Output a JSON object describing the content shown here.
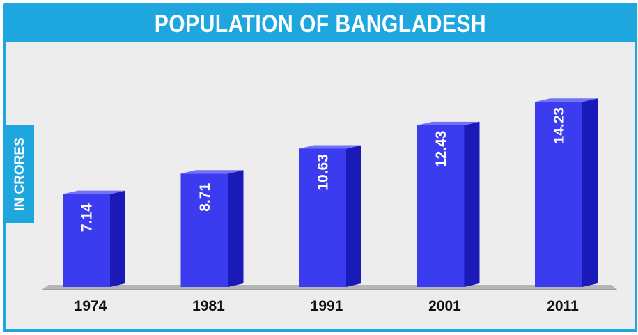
{
  "chart_data": {
    "type": "bar",
    "title": "POPULATION OF BANGLADESH",
    "ylabel": "IN CRORES",
    "xlabel": "",
    "categories": [
      "1974",
      "1981",
      "1991",
      "2001",
      "2011"
    ],
    "values": [
      7.14,
      8.71,
      10.63,
      12.43,
      14.23
    ],
    "value_labels": [
      "7.14",
      "8.71",
      "10.63",
      "12.43",
      "14.23"
    ],
    "ylim": [
      0,
      15.9
    ],
    "grid": false,
    "legend": "none",
    "style": "3d-columns"
  },
  "colors": {
    "accent": "#1ea6df",
    "bar_front": "#3b3bf0",
    "bar_top": "#7373f7",
    "bar_side": "#1a1ab8",
    "background": "#ededed",
    "floor": "#b5b5b5"
  }
}
